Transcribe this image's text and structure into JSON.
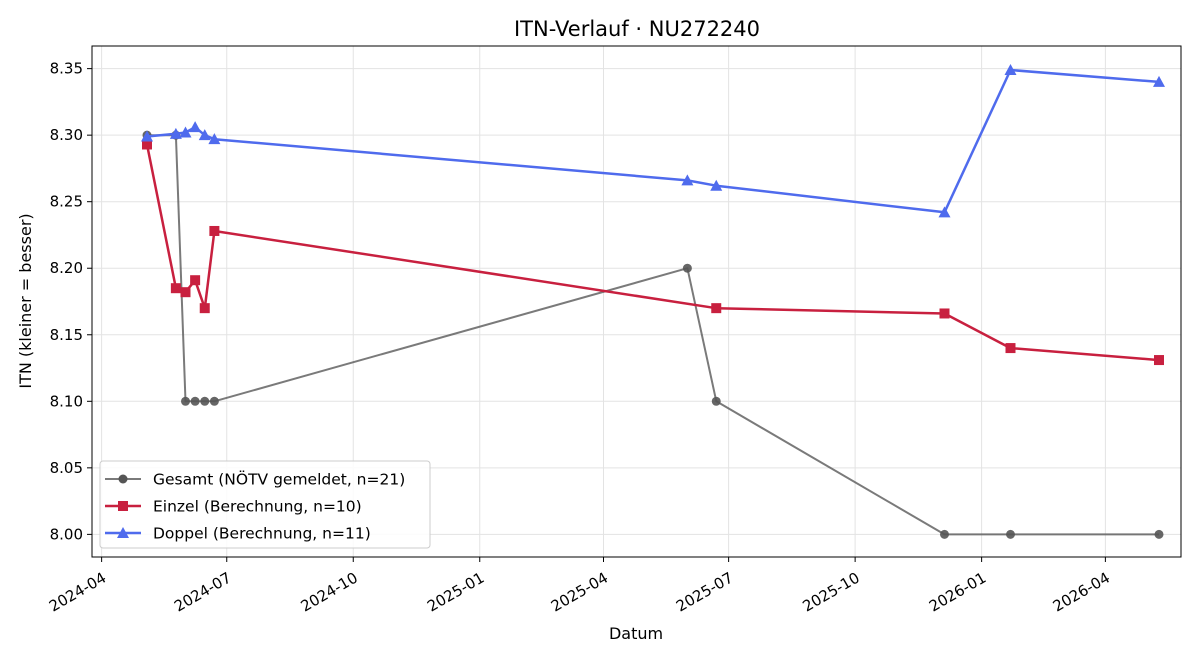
{
  "chart_data": {
    "type": "line",
    "title": "ITN-Verlauf · NU272240",
    "xlabel": "Datum",
    "ylabel": "ITN  (kleiner = besser)",
    "x_ticks": [
      "2024-04",
      "2024-07",
      "2024-10",
      "2025-01",
      "2025-04",
      "2025-07",
      "2025-10",
      "2026-01",
      "2026-04"
    ],
    "y_ticks": [
      "8.00",
      "8.05",
      "8.10",
      "8.15",
      "8.20",
      "8.25",
      "8.30",
      "8.35"
    ],
    "xlim": [
      "2024-03-25",
      "2026-05-26"
    ],
    "ylim": [
      7.983,
      8.367
    ],
    "grid": true,
    "legend_position": "lower-left",
    "series": [
      {
        "name": "Gesamt (NÖTV gemeldet, n=21)",
        "color": "#555555",
        "marker": "circle",
        "points": [
          [
            "2024-05-04",
            8.3
          ],
          [
            "2024-05-25",
            8.3
          ],
          [
            "2024-06-01",
            8.1
          ],
          [
            "2024-06-08",
            8.1
          ],
          [
            "2024-06-15",
            8.1
          ],
          [
            "2024-06-22",
            8.1
          ],
          [
            "2025-06-01",
            8.2
          ],
          [
            "2025-06-22",
            8.1
          ],
          [
            "2025-12-05",
            8.0
          ],
          [
            "2026-01-22",
            8.0
          ],
          [
            "2026-05-10",
            8.0
          ]
        ]
      },
      {
        "name": "Einzel (Berechnung, n=10)",
        "color": "#c8203f",
        "marker": "square",
        "points": [
          [
            "2024-05-04",
            8.293
          ],
          [
            "2024-05-25",
            8.185
          ],
          [
            "2024-06-01",
            8.182
          ],
          [
            "2024-06-08",
            8.191
          ],
          [
            "2024-06-15",
            8.17
          ],
          [
            "2024-06-22",
            8.228
          ],
          [
            "2025-06-22",
            8.17
          ],
          [
            "2025-12-05",
            8.166
          ],
          [
            "2026-01-22",
            8.14
          ],
          [
            "2026-05-10",
            8.131
          ]
        ]
      },
      {
        "name": "Doppel (Berechnung, n=11)",
        "color": "#4f6bed",
        "marker": "triangle",
        "points": [
          [
            "2024-05-04",
            8.299
          ],
          [
            "2024-05-25",
            8.301
          ],
          [
            "2024-06-01",
            8.302
          ],
          [
            "2024-06-08",
            8.306
          ],
          [
            "2024-06-15",
            8.3
          ],
          [
            "2024-06-22",
            8.297
          ],
          [
            "2025-06-01",
            8.266
          ],
          [
            "2025-06-22",
            8.262
          ],
          [
            "2025-12-05",
            8.242
          ],
          [
            "2026-01-22",
            8.349
          ],
          [
            "2026-05-10",
            8.34
          ]
        ]
      }
    ]
  }
}
